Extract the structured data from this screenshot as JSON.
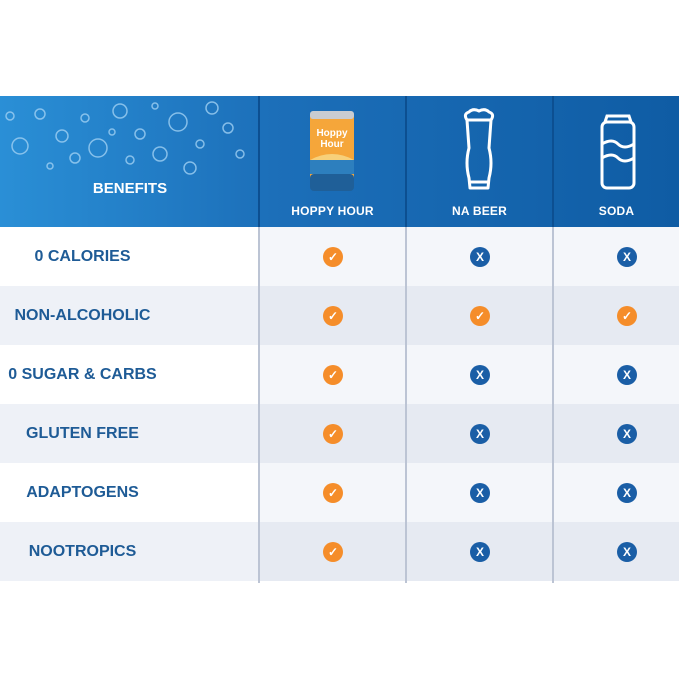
{
  "header": {
    "benefits_label": "BENEFITS",
    "columns": [
      {
        "label": "HOPPY HOUR",
        "icon": "hoppy-hour-can-icon"
      },
      {
        "label": "NA BEER",
        "icon": "beer-glass-icon"
      },
      {
        "label": "SODA",
        "icon": "soda-can-icon"
      }
    ],
    "can_text": {
      "line1": "Hoppy",
      "line2": "Hour"
    }
  },
  "rows": [
    {
      "label": "0 CALORIES",
      "values": [
        "check",
        "x",
        "x"
      ]
    },
    {
      "label": "NON-ALCOHOLIC",
      "values": [
        "check",
        "check",
        "check"
      ]
    },
    {
      "label": "0 SUGAR & CARBS",
      "values": [
        "check",
        "x",
        "x"
      ]
    },
    {
      "label": "GLUTEN FREE",
      "values": [
        "check",
        "x",
        "x"
      ]
    },
    {
      "label": "ADAPTOGENS",
      "values": [
        "check",
        "x",
        "x"
      ]
    },
    {
      "label": "NOOTROPICS",
      "values": [
        "check",
        "x",
        "x"
      ]
    }
  ],
  "colors": {
    "header_blue": "#1c6fb9",
    "check_orange": "#f58d2a",
    "x_blue": "#1a5ea6",
    "label_blue": "#1e5b96"
  }
}
